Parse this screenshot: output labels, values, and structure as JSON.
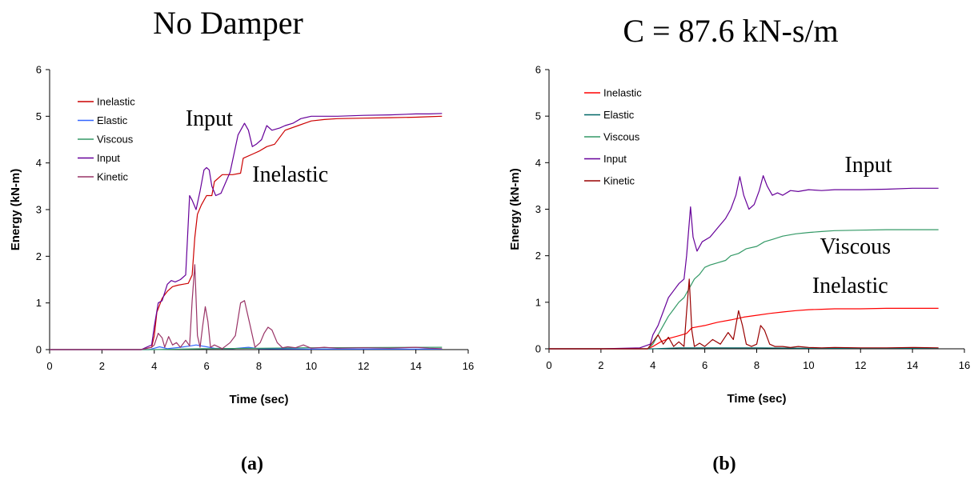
{
  "chart_data": [
    {
      "type": "line",
      "title": "No Damper",
      "panel_label": "(a)",
      "xlabel": "Time (sec)",
      "ylabel": "Energy (kN-m)",
      "xlim": [
        0,
        16
      ],
      "ylim": [
        0,
        6
      ],
      "xticks": [
        0,
        2,
        4,
        6,
        8,
        10,
        12,
        14,
        16
      ],
      "yticks": [
        0,
        1,
        2,
        3,
        4,
        5,
        6
      ],
      "grid": false,
      "legend_position": "top-left",
      "annotations": [
        {
          "text": "Input",
          "x": 6.1,
          "y": 4.8
        },
        {
          "text": "Inelastic",
          "x": 9.2,
          "y": 3.6
        }
      ],
      "series": [
        {
          "name": "Inelastic",
          "color": "#cc0000",
          "x": [
            0,
            2,
            3.5,
            3.9,
            4.0,
            4.1,
            4.3,
            4.5,
            4.7,
            4.9,
            5.1,
            5.3,
            5.45,
            5.55,
            5.65,
            5.8,
            6.0,
            6.2,
            6.3,
            6.6,
            7.0,
            7.3,
            7.4,
            7.8,
            8.0,
            8.3,
            8.6,
            9.0,
            9.5,
            10.0,
            10.5,
            11.0,
            12.0,
            13.0,
            14.0,
            14.5,
            15.0
          ],
          "y": [
            0,
            0,
            0,
            0.05,
            0.3,
            0.8,
            1.1,
            1.25,
            1.35,
            1.38,
            1.4,
            1.42,
            1.6,
            2.4,
            2.9,
            3.1,
            3.3,
            3.3,
            3.6,
            3.75,
            3.75,
            3.78,
            4.1,
            4.2,
            4.25,
            4.35,
            4.4,
            4.7,
            4.8,
            4.9,
            4.93,
            4.95,
            4.96,
            4.97,
            4.98,
            4.99,
            5.0
          ]
        },
        {
          "name": "Elastic",
          "color": "#3366ff",
          "x": [
            0,
            3.8,
            4.0,
            4.2,
            4.5,
            5.0,
            5.4,
            5.6,
            6.0,
            6.3,
            7.0,
            7.6,
            8.0,
            10.0,
            15.0
          ],
          "y": [
            0,
            0,
            0.03,
            0.06,
            0.02,
            0.05,
            0.08,
            0.1,
            0.06,
            0.03,
            0.02,
            0.05,
            0.02,
            0.01,
            0.01
          ]
        },
        {
          "name": "Viscous",
          "color": "#339966",
          "x": [
            0,
            4.0,
            5.0,
            6.0,
            8.0,
            10.0,
            15.0
          ],
          "y": [
            0,
            0,
            0.01,
            0.02,
            0.03,
            0.04,
            0.05
          ]
        },
        {
          "name": "Input",
          "color": "#660099",
          "x": [
            0,
            2,
            3.5,
            3.9,
            4.0,
            4.15,
            4.3,
            4.5,
            4.65,
            4.8,
            5.0,
            5.2,
            5.35,
            5.45,
            5.6,
            5.75,
            5.9,
            6.0,
            6.1,
            6.2,
            6.35,
            6.55,
            6.9,
            7.2,
            7.45,
            7.6,
            7.75,
            7.9,
            8.1,
            8.3,
            8.5,
            8.8,
            9.0,
            9.3,
            9.6,
            10.0,
            10.5,
            11.0,
            12.0,
            13.0,
            14.0,
            14.5,
            15.0
          ],
          "y": [
            0,
            0,
            0,
            0.1,
            0.5,
            1.0,
            1.05,
            1.4,
            1.48,
            1.45,
            1.5,
            1.6,
            3.3,
            3.2,
            3.0,
            3.4,
            3.85,
            3.9,
            3.85,
            3.5,
            3.3,
            3.35,
            3.8,
            4.6,
            4.85,
            4.7,
            4.35,
            4.4,
            4.5,
            4.8,
            4.7,
            4.75,
            4.8,
            4.85,
            4.95,
            5.0,
            5.0,
            5.0,
            5.02,
            5.03,
            5.05,
            5.05,
            5.06
          ]
        },
        {
          "name": "Kinetic",
          "color": "#993366",
          "x": [
            0,
            3.5,
            3.9,
            4.0,
            4.15,
            4.3,
            4.4,
            4.55,
            4.7,
            4.85,
            5.0,
            5.2,
            5.35,
            5.45,
            5.55,
            5.65,
            5.75,
            5.85,
            5.95,
            6.05,
            6.15,
            6.3,
            6.6,
            6.9,
            7.1,
            7.3,
            7.45,
            7.65,
            7.85,
            8.05,
            8.2,
            8.35,
            8.5,
            8.7,
            8.9,
            9.1,
            9.4,
            9.7,
            10.0,
            10.5,
            11.0,
            12.0,
            13.0,
            14.0,
            14.5,
            15.0
          ],
          "y": [
            0,
            0,
            0.05,
            0.1,
            0.35,
            0.25,
            0.05,
            0.28,
            0.1,
            0.15,
            0.05,
            0.2,
            0.08,
            1.05,
            1.82,
            0.3,
            0.05,
            0.5,
            0.92,
            0.6,
            0.05,
            0.1,
            0.02,
            0.15,
            0.3,
            1.0,
            1.05,
            0.55,
            0.05,
            0.15,
            0.35,
            0.48,
            0.42,
            0.15,
            0.04,
            0.06,
            0.04,
            0.1,
            0.03,
            0.05,
            0.03,
            0.04,
            0.03,
            0.05,
            0.03,
            0.02
          ]
        }
      ]
    },
    {
      "type": "line",
      "title": "C = 87.6 kN-s/m",
      "panel_label": "(b)",
      "xlabel": "Time (sec)",
      "ylabel": "Energy (kN-m)",
      "xlim": [
        0,
        16
      ],
      "ylim": [
        0,
        6
      ],
      "xticks": [
        0,
        2,
        4,
        6,
        8,
        10,
        12,
        14,
        16
      ],
      "yticks": [
        0,
        1,
        2,
        3,
        4,
        5,
        6
      ],
      "grid": false,
      "legend_position": "top-left",
      "annotations": [
        {
          "text": "Input",
          "x": 12.3,
          "y": 3.8
        },
        {
          "text": "Viscous",
          "x": 11.8,
          "y": 2.05
        },
        {
          "text": "Inelastic",
          "x": 11.6,
          "y": 1.2
        }
      ],
      "series": [
        {
          "name": "Inelastic",
          "color": "#ff0000",
          "x": [
            0,
            3.8,
            4.0,
            4.3,
            4.6,
            5.0,
            5.3,
            5.5,
            6.0,
            6.5,
            7.0,
            7.5,
            8.0,
            8.5,
            9.0,
            9.5,
            10.0,
            10.5,
            11.0,
            12.0,
            13.0,
            14.0,
            15.0
          ],
          "y": [
            0,
            0,
            0.05,
            0.15,
            0.22,
            0.28,
            0.33,
            0.45,
            0.5,
            0.57,
            0.62,
            0.68,
            0.72,
            0.76,
            0.79,
            0.82,
            0.84,
            0.85,
            0.86,
            0.86,
            0.87,
            0.87,
            0.87
          ]
        },
        {
          "name": "Elastic",
          "color": "#006666",
          "x": [
            0,
            4.0,
            5.0,
            6.0,
            8.0,
            10.0,
            15.0
          ],
          "y": [
            0,
            0,
            0.02,
            0.02,
            0.02,
            0.01,
            0.01
          ]
        },
        {
          "name": "Viscous",
          "color": "#339966",
          "x": [
            0,
            3.8,
            4.0,
            4.2,
            4.4,
            4.6,
            4.8,
            5.0,
            5.2,
            5.4,
            5.6,
            5.8,
            6.0,
            6.2,
            6.5,
            6.8,
            7.0,
            7.3,
            7.6,
            8.0,
            8.3,
            8.6,
            9.0,
            9.5,
            10.0,
            10.5,
            11.0,
            12.0,
            13.0,
            14.0,
            15.0
          ],
          "y": [
            0,
            0,
            0.1,
            0.3,
            0.5,
            0.7,
            0.85,
            1.0,
            1.1,
            1.3,
            1.5,
            1.6,
            1.75,
            1.8,
            1.85,
            1.9,
            2.0,
            2.05,
            2.15,
            2.2,
            2.3,
            2.35,
            2.42,
            2.47,
            2.5,
            2.52,
            2.54,
            2.55,
            2.56,
            2.56,
            2.56
          ]
        },
        {
          "name": "Input",
          "color": "#660099",
          "x": [
            0,
            2,
            3.5,
            3.9,
            4.0,
            4.2,
            4.4,
            4.6,
            4.8,
            5.0,
            5.2,
            5.3,
            5.45,
            5.55,
            5.7,
            5.9,
            6.2,
            6.5,
            6.8,
            7.0,
            7.2,
            7.35,
            7.5,
            7.7,
            7.9,
            8.1,
            8.25,
            8.4,
            8.6,
            8.8,
            9.0,
            9.3,
            9.6,
            10.0,
            10.5,
            11.0,
            12.0,
            13.0,
            14.0,
            14.5,
            15.0
          ],
          "y": [
            0,
            0,
            0.02,
            0.1,
            0.3,
            0.5,
            0.8,
            1.1,
            1.25,
            1.4,
            1.5,
            2.0,
            3.05,
            2.4,
            2.1,
            2.3,
            2.4,
            2.6,
            2.8,
            3.0,
            3.3,
            3.7,
            3.3,
            3.0,
            3.1,
            3.4,
            3.72,
            3.5,
            3.3,
            3.35,
            3.3,
            3.4,
            3.38,
            3.42,
            3.4,
            3.42,
            3.42,
            3.43,
            3.45,
            3.45,
            3.45
          ]
        },
        {
          "name": "Kinetic",
          "color": "#990000",
          "x": [
            0,
            3.8,
            4.0,
            4.2,
            4.4,
            4.6,
            4.8,
            5.0,
            5.2,
            5.3,
            5.4,
            5.5,
            5.6,
            5.8,
            6.0,
            6.3,
            6.6,
            6.9,
            7.1,
            7.3,
            7.45,
            7.6,
            7.8,
            8.0,
            8.15,
            8.3,
            8.5,
            8.7,
            9.0,
            9.3,
            9.6,
            10.0,
            10.5,
            11.0,
            12.0,
            13.0,
            14.0,
            15.0
          ],
          "y": [
            0,
            0,
            0.15,
            0.3,
            0.1,
            0.25,
            0.05,
            0.15,
            0.05,
            0.8,
            1.5,
            0.4,
            0.05,
            0.12,
            0.05,
            0.2,
            0.1,
            0.35,
            0.2,
            0.82,
            0.5,
            0.1,
            0.05,
            0.1,
            0.5,
            0.4,
            0.1,
            0.05,
            0.05,
            0.03,
            0.05,
            0.03,
            0.02,
            0.03,
            0.02,
            0.02,
            0.03,
            0.02
          ]
        }
      ]
    }
  ]
}
